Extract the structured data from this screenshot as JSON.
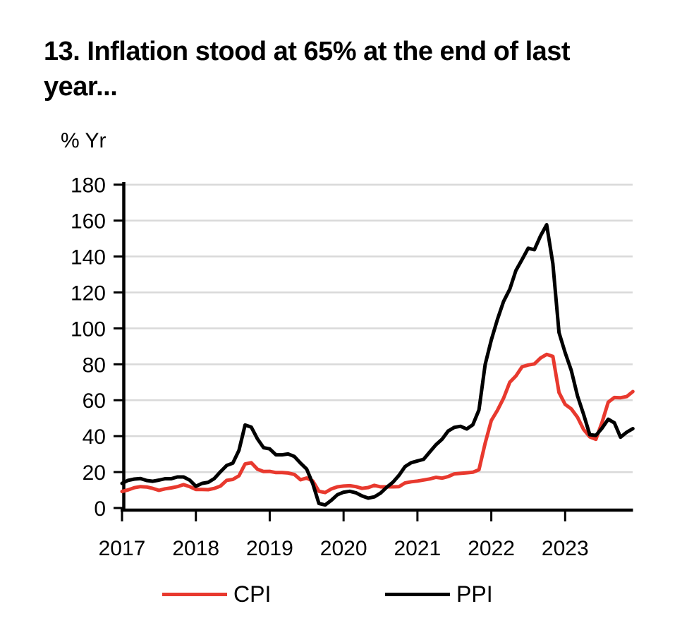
{
  "title_lines": [
    "13. Inflation stood at 65% at the end of last",
    "year..."
  ],
  "y_axis_unit": "% Yr",
  "legend": {
    "cpi_label": "CPI",
    "ppi_label": "PPI"
  },
  "colors": {
    "cpi": "#e8392e",
    "ppi": "#000000",
    "gridline": "#d9d9d9",
    "axis": "#000000",
    "text": "#000000",
    "background": "#ffffff"
  },
  "chart_data": {
    "type": "line",
    "title": "13. Inflation stood at 65% at the end of last year...",
    "xlabel": "",
    "ylabel": "% Yr",
    "ylim": [
      0,
      180
    ],
    "yticks": [
      0,
      20,
      40,
      60,
      80,
      100,
      120,
      140,
      160,
      180
    ],
    "x_tick_labels": [
      "2017",
      "2018",
      "2019",
      "2020",
      "2021",
      "2022",
      "2023"
    ],
    "x_start": "2017-01",
    "x_end": "2023-12",
    "frequency": "monthly",
    "grid": "horizontal",
    "legend_position": "bottom",
    "series": [
      {
        "name": "CPI",
        "color": "#e8392e",
        "values": [
          9.2,
          10.1,
          11.3,
          11.9,
          11.7,
          10.9,
          9.8,
          10.7,
          11.2,
          11.9,
          13.0,
          11.9,
          10.3,
          10.3,
          10.2,
          10.9,
          12.2,
          15.4,
          15.9,
          17.9,
          24.5,
          25.2,
          21.6,
          20.3,
          20.4,
          19.7,
          19.7,
          19.5,
          18.7,
          15.7,
          16.7,
          15.0,
          9.3,
          8.6,
          10.6,
          11.8,
          12.2,
          12.4,
          11.9,
          10.9,
          11.4,
          12.6,
          11.8,
          11.8,
          11.8,
          11.9,
          14.0,
          14.6,
          15.0,
          15.6,
          16.2,
          17.1,
          16.6,
          17.5,
          19.0,
          19.3,
          19.6,
          19.9,
          21.3,
          36.1,
          48.7,
          54.4,
          61.1,
          70.0,
          73.5,
          78.6,
          79.6,
          80.2,
          83.5,
          85.5,
          84.4,
          64.3,
          57.7,
          55.2,
          50.5,
          43.7,
          39.6,
          38.2,
          47.8,
          58.9,
          61.5,
          61.4,
          62.0,
          64.8
        ]
      },
      {
        "name": "PPI",
        "color": "#000000",
        "values": [
          13.7,
          15.4,
          16.1,
          16.4,
          15.3,
          14.9,
          15.5,
          16.3,
          16.3,
          17.3,
          17.3,
          15.5,
          12.1,
          13.7,
          14.3,
          16.4,
          20.2,
          23.7,
          25.0,
          32.1,
          46.2,
          45.0,
          38.5,
          33.6,
          32.9,
          29.6,
          29.6,
          30.1,
          28.7,
          25.0,
          21.7,
          13.5,
          2.5,
          1.7,
          4.3,
          7.4,
          8.8,
          9.3,
          8.5,
          6.7,
          5.5,
          6.2,
          8.3,
          11.5,
          14.3,
          18.2,
          23.1,
          25.2,
          26.2,
          27.1,
          31.2,
          35.2,
          38.3,
          42.9,
          44.9,
          45.5,
          44.0,
          46.3,
          54.6,
          79.9,
          93.5,
          105.0,
          115.0,
          121.8,
          132.2,
          138.3,
          144.6,
          143.8,
          151.5,
          157.7,
          136.0,
          97.7,
          86.5,
          76.6,
          62.4,
          52.1,
          40.8,
          40.4,
          44.5,
          49.4,
          47.4,
          39.4,
          42.2,
          44.2
        ]
      }
    ]
  }
}
